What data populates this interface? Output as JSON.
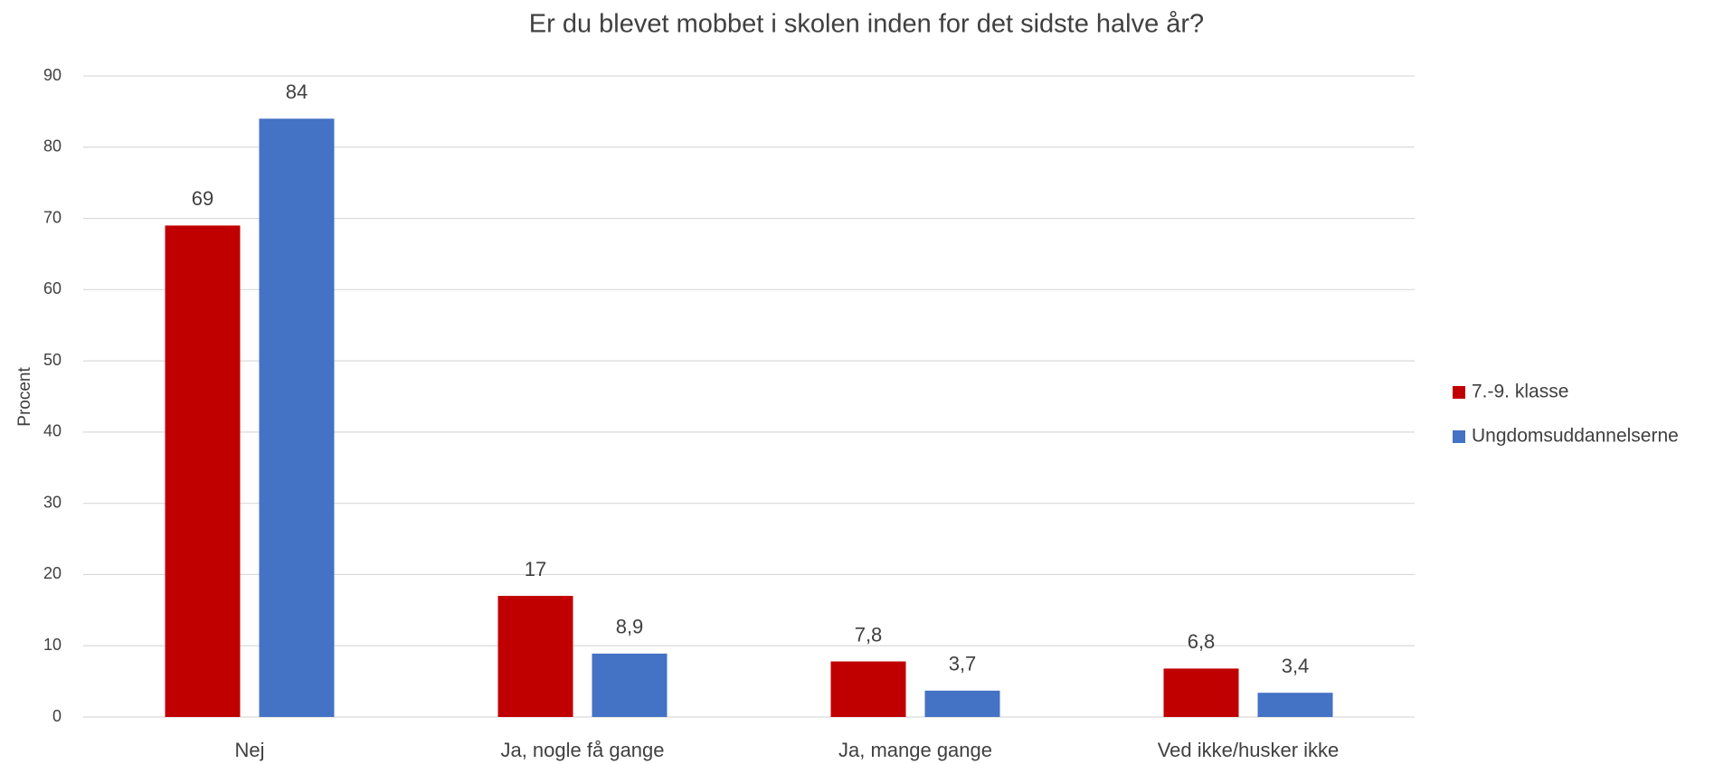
{
  "chart_data": {
    "type": "bar",
    "title": "Er du blevet mobbet i skolen inden for det sidste halve år?",
    "y_label": "Procent",
    "categories": [
      "Nej",
      "Ja, nogle få gange",
      "Ja, mange gange",
      "Ved ikke/husker ikke"
    ],
    "series": [
      {
        "name": "7.-9. klasse",
        "color": "#c00000",
        "values": [
          69,
          17,
          7.8,
          6.8
        ],
        "value_labels": [
          "69",
          "17",
          "7,8",
          "6,8"
        ]
      },
      {
        "name": "Ungdomsuddannelserne",
        "color": "#4472c4",
        "values": [
          84,
          8.9,
          3.7,
          3.4
        ],
        "value_labels": [
          "84",
          "8,9",
          "3,7",
          "3,4"
        ]
      }
    ],
    "ylim": [
      0,
      90
    ],
    "yticks": [
      0,
      10,
      20,
      30,
      40,
      50,
      60,
      70,
      80,
      90
    ],
    "grid": true,
    "legend": "right"
  }
}
